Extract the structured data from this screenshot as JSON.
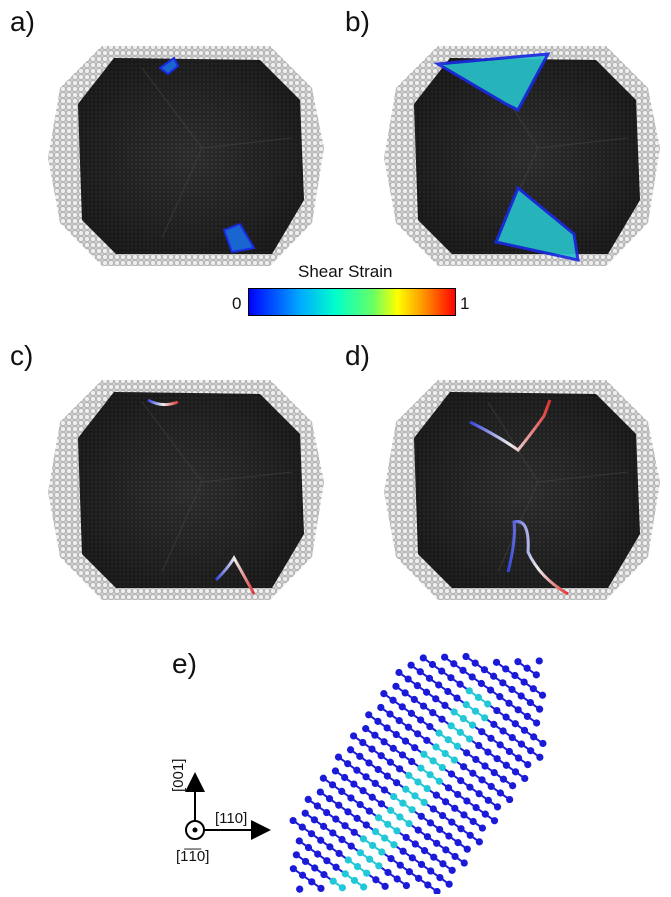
{
  "panels": {
    "a": {
      "label": "a)"
    },
    "b": {
      "label": "b)"
    },
    "c": {
      "label": "c)"
    },
    "d": {
      "label": "d)"
    },
    "e": {
      "label": "e)"
    }
  },
  "colorbar": {
    "title": "Shear Strain",
    "min_label": "0",
    "max_label": "1",
    "colors": [
      "#0000ff",
      "#00aaff",
      "#00ffcc",
      "#66ff66",
      "#ffff00",
      "#ff8800",
      "#ff0000"
    ]
  },
  "axes": {
    "vertical": "[001]",
    "horizontal": "[110]",
    "out_of_plane": "[1̅1̅0]"
  },
  "colors": {
    "atom_surface": "#d8d8d8",
    "atom_outline": "#9a9a9a",
    "interior": "#2e2e2e",
    "lattice_blue": "#1a1ad8",
    "stacking_fault": "#22c8d8"
  }
}
